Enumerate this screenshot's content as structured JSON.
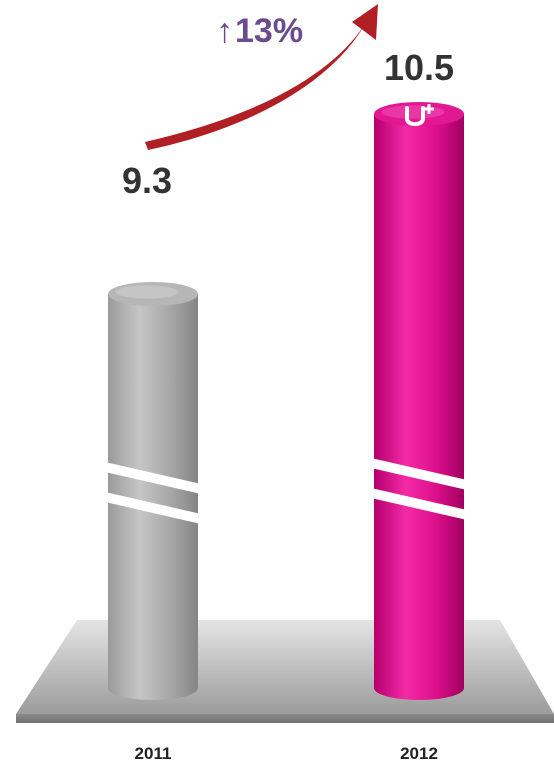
{
  "chart_data": {
    "type": "bar",
    "categories": [
      "2011",
      "2012"
    ],
    "values": [
      9.3,
      10.5
    ],
    "value_labels": [
      "9.3",
      "10.5"
    ],
    "growth_label": "13%",
    "title": "",
    "xlabel": "",
    "ylabel": "",
    "axis_break": true,
    "colors": {
      "bar_2011": "#a8a8a8",
      "bar_2012": "#e0108c",
      "growth_arrow": "#b01f24",
      "growth_text": "#6a4c8c"
    }
  },
  "icons": {
    "growth_arrow_glyph": "up-arrow-icon",
    "brand_logo": "u-plus-logo"
  }
}
